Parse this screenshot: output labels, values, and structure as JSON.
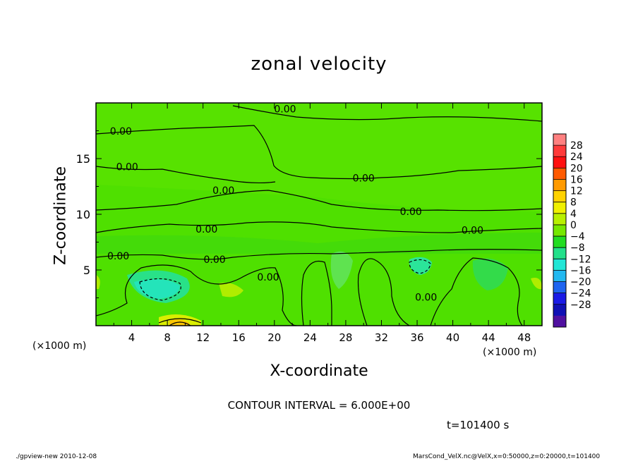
{
  "chart_data": {
    "type": "heatmap",
    "title": "zonal velocity",
    "xlabel": "X-coordinate",
    "ylabel": "Z-coordinate",
    "x_unit_left": "(×1000 m)",
    "x_unit_right": "(×1000 m)",
    "xlim": [
      0,
      50
    ],
    "ylim": [
      0,
      20
    ],
    "x_ticks": [
      4,
      8,
      12,
      16,
      20,
      24,
      28,
      32,
      36,
      40,
      44,
      48
    ],
    "y_ticks": [
      5,
      10,
      15
    ],
    "grid": false,
    "colorbar": {
      "ticks": [
        "28",
        "24",
        "20",
        "16",
        "12",
        "8",
        "4",
        "0",
        "−4",
        "−8",
        "−12",
        "−16",
        "−20",
        "−24",
        "−28"
      ],
      "colors": [
        "#ff8080",
        "#ff3a3a",
        "#ff1010",
        "#ff5a00",
        "#ff9a00",
        "#ffd200",
        "#f0f000",
        "#b8f000",
        "#76e800",
        "#22dd22",
        "#22e08a",
        "#22e6d6",
        "#22b8f0",
        "#1e64f0",
        "#1a1ae6",
        "#1010b4",
        "#5010a0"
      ]
    },
    "contour_interval": "CONTOUR INTERVAL = 6.000E+00",
    "contour_labels": [
      {
        "text": "0.00",
        "x": 2.8,
        "z": 17.4
      },
      {
        "text": "0.00",
        "x": 21.2,
        "z": 19.4
      },
      {
        "text": "0.00",
        "x": 3.5,
        "z": 14.2
      },
      {
        "text": "0.00",
        "x": 14.3,
        "z": 12.1
      },
      {
        "text": "0.00",
        "x": 30.0,
        "z": 13.2
      },
      {
        "text": "0.00",
        "x": 35.3,
        "z": 10.2
      },
      {
        "text": "0.00",
        "x": 12.4,
        "z": 8.6
      },
      {
        "text": "0.00",
        "x": 42.2,
        "z": 8.5
      },
      {
        "text": "0.00",
        "x": 2.5,
        "z": 6.2
      },
      {
        "text": "0.00",
        "x": 13.3,
        "z": 5.9
      },
      {
        "text": "0.00",
        "x": 19.3,
        "z": 4.3
      },
      {
        "text": "0.00",
        "x": 37.0,
        "z": 2.5
      }
    ]
  },
  "timestamp": "t=101400 s",
  "footer_left": "./gpview-new  2010-12-08",
  "footer_right": "MarsCond_VelX.nc@VelX,x=0:50000,z=0:20000,t=101400"
}
